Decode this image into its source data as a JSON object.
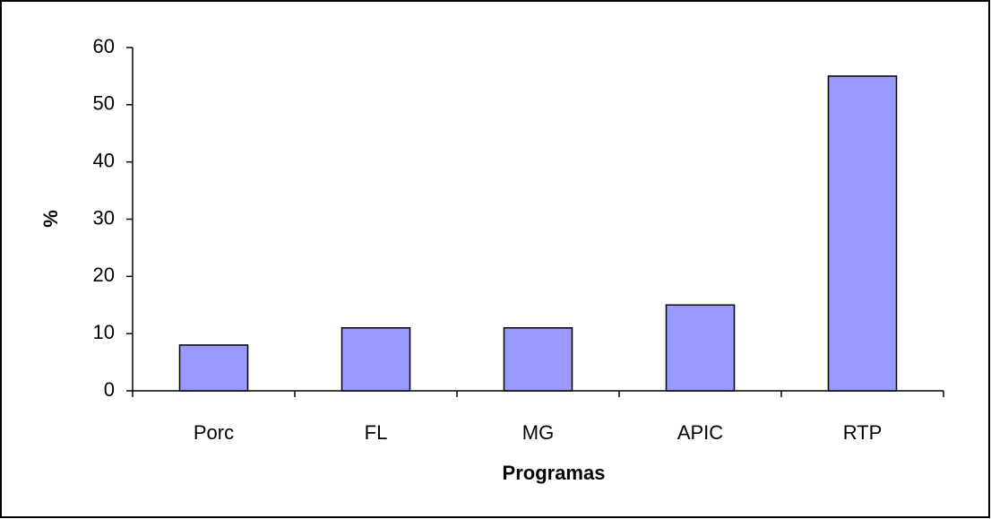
{
  "chart_data": {
    "type": "bar",
    "categories": [
      "Porc",
      "FL",
      "MG",
      "APIC",
      "RTP"
    ],
    "values": [
      8,
      11,
      11,
      15,
      55
    ],
    "color": "#9999ff",
    "xlabel": "Programas",
    "ylabel": "%",
    "ylim": [
      0,
      60
    ],
    "yticks": [
      0,
      10,
      20,
      30,
      40,
      50,
      60
    ]
  }
}
